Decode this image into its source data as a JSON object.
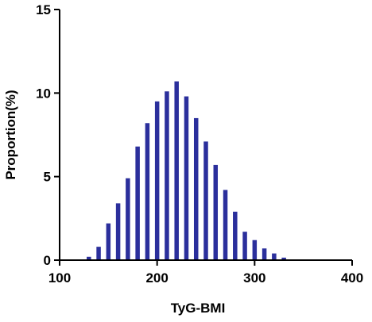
{
  "chart_data": {
    "type": "bar",
    "xlabel": "TyG-BMI",
    "ylabel": "Proportion(%)",
    "xlim": [
      100,
      400
    ],
    "ylim": [
      0,
      15
    ],
    "xticks": [
      "100",
      "200",
      "300",
      "400"
    ],
    "yticks": [
      "0",
      "5",
      "10",
      "15"
    ],
    "grid": false,
    "bar_color": "#2b2f9c",
    "x": [
      130,
      140,
      150,
      160,
      170,
      180,
      190,
      200,
      210,
      220,
      230,
      240,
      250,
      260,
      270,
      280,
      290,
      300,
      310,
      320,
      330
    ],
    "values": [
      0.2,
      0.8,
      2.2,
      3.4,
      4.9,
      6.8,
      8.2,
      9.5,
      10.1,
      10.7,
      9.8,
      8.5,
      7.1,
      5.7,
      4.2,
      2.9,
      1.7,
      1.2,
      0.7,
      0.4,
      0.15
    ]
  }
}
